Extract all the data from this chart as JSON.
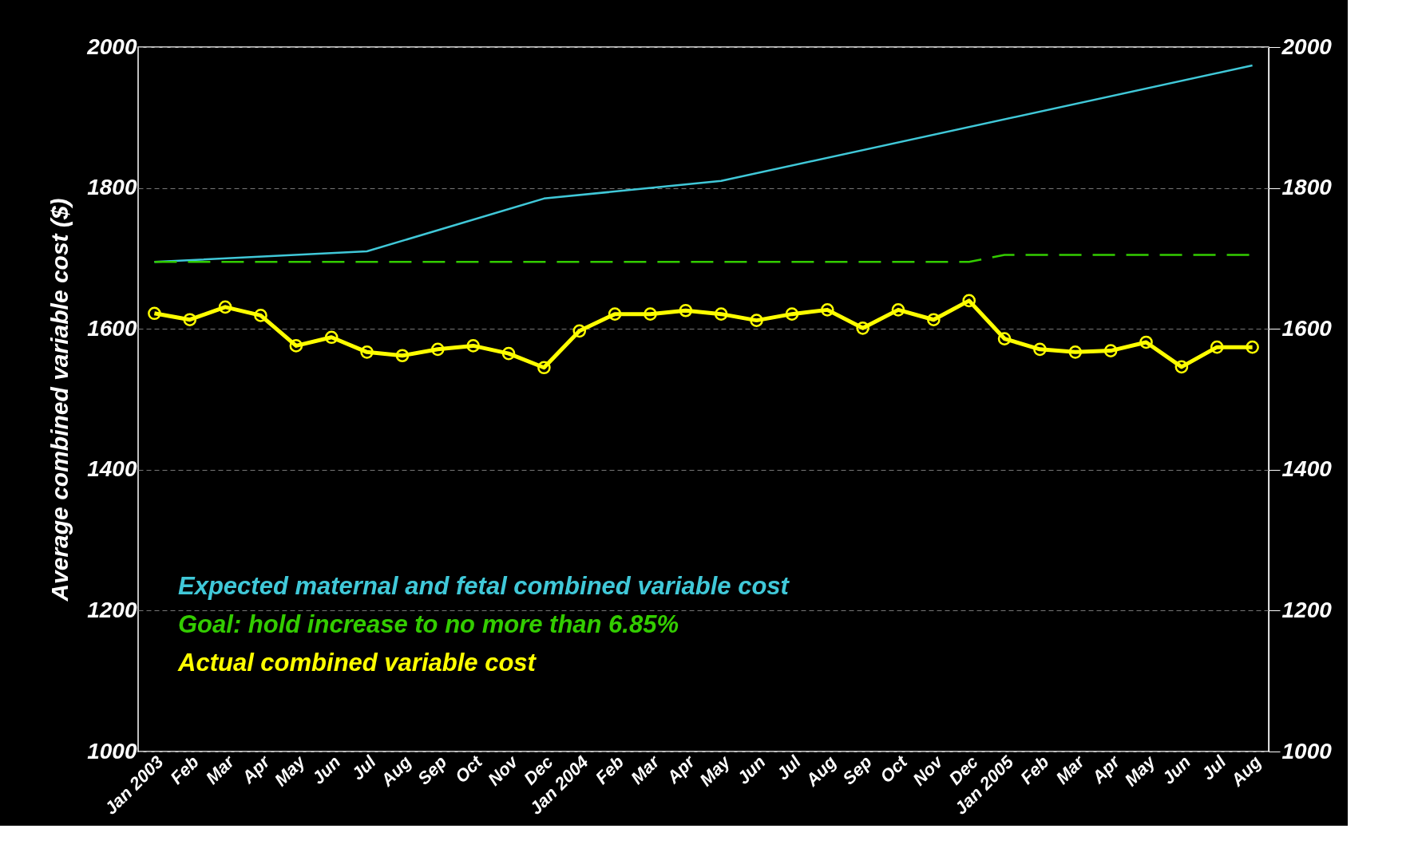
{
  "chart_data": {
    "type": "line",
    "ylabel": "Average combined variable cost ($)",
    "categories": [
      "Jan 2003",
      "Feb",
      "Mar",
      "Apr",
      "May",
      "Jun",
      "Jul",
      "Aug",
      "Sep",
      "Oct",
      "Nov",
      "Dec",
      "Jan 2004",
      "Feb",
      "Mar",
      "Apr",
      "May",
      "Jun",
      "Jul",
      "Aug",
      "Sep",
      "Oct",
      "Nov",
      "Dec",
      "Jan 2005",
      "Feb",
      "Mar",
      "Apr",
      "May",
      "Jun",
      "Jul",
      "Aug"
    ],
    "series": [
      {
        "name": "Expected maternal and fetal combined variable cost",
        "color": "#40c8d8",
        "line_style": "solid",
        "marker": "none",
        "values": [
          1695,
          null,
          null,
          null,
          null,
          null,
          1710,
          null,
          null,
          null,
          null,
          1785,
          null,
          null,
          null,
          null,
          1810,
          null,
          null,
          null,
          null,
          null,
          null,
          null,
          null,
          null,
          null,
          null,
          null,
          null,
          null,
          1974
        ]
      },
      {
        "name": "Goal: hold increase to no more than 6.85%",
        "color": "#33cc00",
        "line_style": "dashed",
        "marker": "none",
        "values": [
          1695,
          1695,
          1695,
          1695,
          1695,
          1695,
          1695,
          1695,
          1695,
          1695,
          1695,
          1695,
          1695,
          1695,
          1695,
          1695,
          1695,
          1695,
          1695,
          1695,
          1695,
          1695,
          1695,
          1695,
          1705,
          1705,
          1705,
          1705,
          1705,
          1705,
          1705,
          1705
        ]
      },
      {
        "name": "Actual combined variable cost",
        "color": "#ffff00",
        "line_style": "solid",
        "marker": "circle",
        "values": [
          1622,
          1613,
          1631,
          1619,
          1576,
          1588,
          1567,
          1562,
          1571,
          1576,
          1565,
          1545,
          1597,
          1621,
          1621,
          1626,
          1621,
          1612,
          1621,
          1627,
          1601,
          1627,
          1613,
          1640,
          1586,
          1571,
          1567,
          1569,
          1581,
          1546,
          1574,
          1574
        ]
      }
    ],
    "ylim": [
      1000,
      2000
    ],
    "yticks": [
      1000,
      1200,
      1400,
      1600,
      1800,
      2000
    ],
    "y2lim": [
      1000,
      2000
    ],
    "y2ticks": [
      1000,
      1200,
      1400,
      1600,
      1800,
      2000
    ],
    "grid": "y",
    "legend": "bottom left"
  }
}
